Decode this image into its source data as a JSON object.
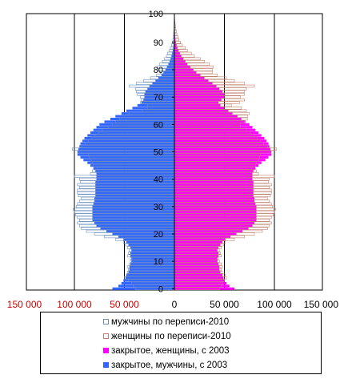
{
  "chart_data": {
    "type": "bar",
    "orientation": "horizontal",
    "layout": "population-pyramid",
    "y_label": "",
    "x_label": "",
    "age_ticks": [
      "0",
      "10",
      "20",
      "30",
      "40",
      "50",
      "60",
      "70",
      "80",
      "90",
      "100"
    ],
    "x_ticks": [
      "150 000",
      "100 000",
      "50 000",
      "0",
      "50 000",
      "100 000",
      "150 000"
    ],
    "x_tick_colors": [
      "#cc0000",
      "#cc0000",
      "#cc0000",
      "#000000",
      "#000000",
      "#000000",
      "#000000"
    ],
    "xlim": [
      -150000,
      150000
    ],
    "ylim": [
      0,
      100
    ],
    "gridlines_x": [
      -100000,
      -50000,
      0,
      50000,
      100000
    ],
    "ages": [
      0,
      1,
      2,
      3,
      4,
      5,
      6,
      7,
      8,
      9,
      10,
      11,
      12,
      13,
      14,
      15,
      16,
      17,
      18,
      19,
      20,
      21,
      22,
      23,
      24,
      25,
      26,
      27,
      28,
      29,
      30,
      31,
      32,
      33,
      34,
      35,
      36,
      37,
      38,
      39,
      40,
      41,
      42,
      43,
      44,
      45,
      46,
      47,
      48,
      49,
      50,
      51,
      52,
      53,
      54,
      55,
      56,
      57,
      58,
      59,
      60,
      61,
      62,
      63,
      64,
      65,
      66,
      67,
      68,
      69,
      70,
      71,
      72,
      73,
      74,
      75,
      76,
      77,
      78,
      79,
      80,
      81,
      82,
      83,
      84,
      85,
      86,
      87,
      88,
      89,
      90,
      91,
      92,
      93,
      94,
      95,
      96,
      97,
      98,
      99,
      100
    ],
    "series": [
      {
        "name": "мужчины по переписи-2010",
        "style": "outline",
        "color": "#6b8fbf",
        "values": [
          39000,
          41000,
          43000,
          46000,
          50000,
          48000,
          47000,
          46000,
          47000,
          45000,
          44000,
          44000,
          47000,
          46000,
          45000,
          47000,
          49000,
          51000,
          59000,
          70000,
          80000,
          88000,
          93000,
          95000,
          97000,
          95000,
          97000,
          99000,
          100000,
          101000,
          98000,
          97000,
          95000,
          93000,
          96000,
          97000,
          97000,
          95000,
          97000,
          94000,
          95000,
          100000,
          84000,
          82000,
          77000,
          81000,
          82000,
          84000,
          85000,
          86000,
          96000,
          102000,
          93000,
          89000,
          86000,
          83000,
          80000,
          76000,
          72000,
          66000,
          62000,
          59000,
          55000,
          50000,
          45000,
          32000,
          27000,
          27000,
          34000,
          33000,
          34000,
          37000,
          38000,
          39000,
          45000,
          38000,
          31000,
          24000,
          18000,
          14000,
          16000,
          17000,
          15000,
          12000,
          10000,
          8000,
          7000,
          5000,
          4000,
          3000,
          2000,
          1500,
          1200,
          900,
          700,
          500,
          400,
          300,
          200,
          100,
          50
        ]
      },
      {
        "name": "женщины по переписи-2010",
        "style": "outline",
        "color": "#c08070",
        "values": [
          45000,
          47000,
          48000,
          50000,
          52000,
          51000,
          48000,
          47000,
          48000,
          47000,
          45000,
          44000,
          47000,
          46000,
          45000,
          47000,
          49000,
          51000,
          60000,
          70000,
          80000,
          88000,
          93000,
          95000,
          97000,
          95000,
          97000,
          99000,
          100000,
          101000,
          98000,
          97000,
          95000,
          93000,
          96000,
          97000,
          97000,
          95000,
          97000,
          94000,
          95000,
          100000,
          84000,
          82000,
          77000,
          81000,
          82000,
          84000,
          85000,
          86000,
          96000,
          102000,
          93000,
          89000,
          86000,
          83000,
          80000,
          76000,
          72000,
          66000,
          66000,
          70000,
          73000,
          73000,
          75000,
          72000,
          67000,
          57000,
          65000,
          70000,
          66000,
          70000,
          70000,
          72000,
          80000,
          70000,
          60000,
          52000,
          43000,
          38000,
          38000,
          39000,
          35000,
          30000,
          26000,
          20000,
          17000,
          13000,
          11000,
          8000,
          6000,
          4500,
          3500,
          2500,
          2000,
          1500,
          1000,
          700,
          400,
          200,
          100
        ]
      },
      {
        "name": "закрытое, женщины,  с 2003",
        "style": "filled",
        "color": "#ff00ff",
        "values": [
          60000,
          55000,
          52000,
          50000,
          49000,
          48000,
          46000,
          45000,
          45000,
          44000,
          43000,
          43000,
          44000,
          44000,
          43000,
          44000,
          46000,
          48000,
          51000,
          56000,
          62000,
          68000,
          74000,
          78000,
          80000,
          82000,
          82000,
          82000,
          82000,
          82000,
          82000,
          81000,
          80000,
          80000,
          79000,
          79000,
          79000,
          79000,
          79000,
          79000,
          78000,
          78000,
          78000,
          79000,
          81000,
          84000,
          87000,
          91000,
          94000,
          97000,
          97000,
          96000,
          95000,
          94000,
          92000,
          90000,
          87000,
          84000,
          81000,
          78000,
          75000,
          71000,
          67000,
          63000,
          58000,
          54000,
          50000,
          46000,
          44000,
          47000,
          50000,
          50000,
          48000,
          45000,
          42000,
          38000,
          34000,
          30000,
          26000,
          22000,
          19000,
          16000,
          13000,
          11000,
          9000,
          7000,
          5500,
          4000,
          3000,
          2200,
          1500,
          1100,
          800,
          600,
          400,
          300,
          200,
          150,
          100,
          60,
          30
        ]
      },
      {
        "name": "закрытое, мужчины,  с 2003",
        "style": "filled",
        "color": "#3366ff",
        "values": [
          62000,
          56000,
          53000,
          51000,
          49000,
          48000,
          46000,
          45000,
          45000,
          44000,
          43000,
          43000,
          44000,
          44000,
          43000,
          44000,
          46000,
          48000,
          51000,
          56000,
          62000,
          68000,
          74000,
          78000,
          80000,
          82000,
          82000,
          82000,
          82000,
          82000,
          82000,
          81000,
          80000,
          80000,
          79000,
          79000,
          79000,
          79000,
          79000,
          79000,
          78000,
          78000,
          78000,
          79000,
          81000,
          84000,
          87000,
          91000,
          94000,
          97000,
          97000,
          96000,
          95000,
          94000,
          92000,
          90000,
          87000,
          84000,
          81000,
          78000,
          75000,
          70000,
          64000,
          59000,
          53000,
          48000,
          42000,
          37000,
          33000,
          31000,
          30000,
          30000,
          29000,
          27000,
          25000,
          22000,
          19000,
          16000,
          13000,
          11000,
          9000,
          7500,
          6000,
          4800,
          3800,
          3000,
          2300,
          1700,
          1200,
          900,
          600,
          400,
          300,
          200,
          150,
          100,
          60,
          40,
          20,
          10,
          5
        ]
      }
    ],
    "legend": {
      "position": "bottom",
      "order": [
        0,
        1,
        2,
        3
      ],
      "items": [
        "мужчины по переписи-2010",
        "женщины по переписи-2010",
        "закрытое, женщины,  с 2003",
        "закрытое, мужчины,  с 2003"
      ]
    }
  }
}
